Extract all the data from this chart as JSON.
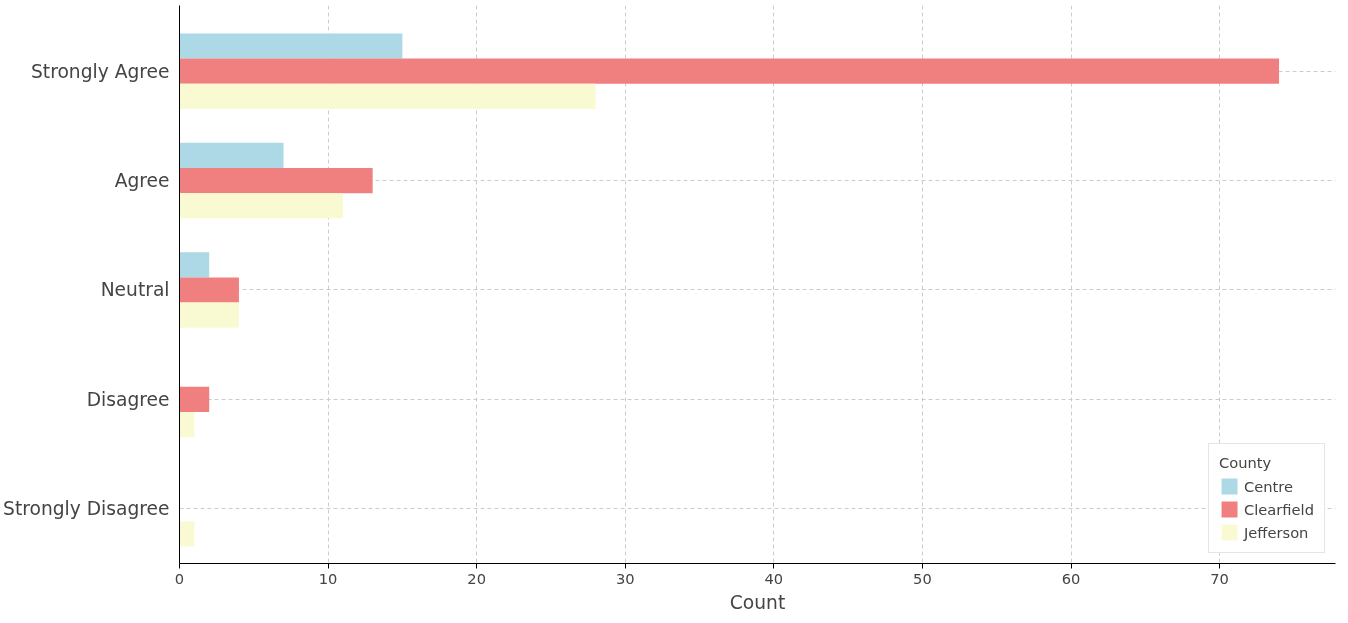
{
  "chart_data": {
    "type": "bar",
    "orientation": "horizontal",
    "xlabel": "Count",
    "legend_title": "County",
    "categories": [
      "Strongly Agree",
      "Agree",
      "Neutral",
      "Disagree",
      "Strongly Disagree"
    ],
    "series": [
      {
        "name": "Centre",
        "color": "#add8e6",
        "values": [
          15,
          7,
          2,
          0,
          0
        ]
      },
      {
        "name": "Clearfield",
        "color": "#f08080",
        "values": [
          74,
          13,
          4,
          2,
          0
        ]
      },
      {
        "name": "Jefferson",
        "color": "#fafad2",
        "values": [
          28,
          11,
          4,
          1,
          1
        ]
      }
    ],
    "xlim": [
      0,
      77.8
    ],
    "xticks": [
      0,
      10,
      20,
      30,
      40,
      50,
      60,
      70
    ],
    "grid": true,
    "legend": "bottom right"
  }
}
